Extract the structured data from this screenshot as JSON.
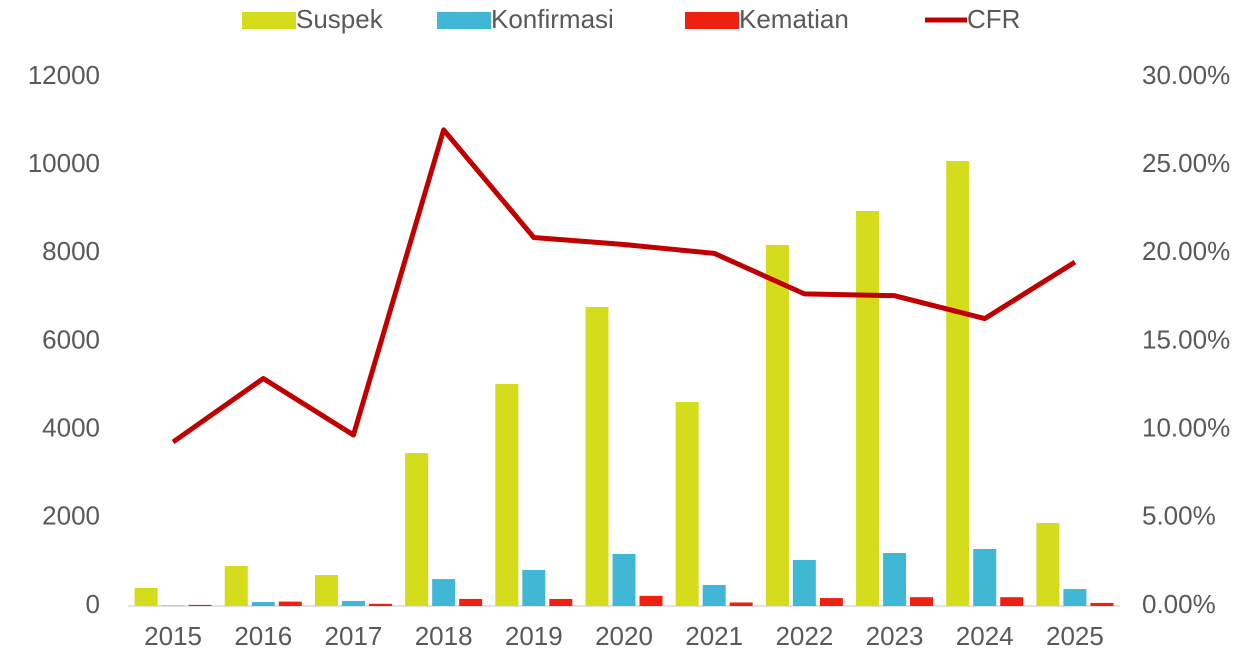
{
  "chart_data": {
    "type": "bar",
    "categories": [
      "2015",
      "2016",
      "2017",
      "2018",
      "2019",
      "2020",
      "2021",
      "2022",
      "2023",
      "2024",
      "2025"
    ],
    "series": [
      {
        "name": "Suspek",
        "color": "#d4dc1c",
        "values": [
          410,
          907,
          703,
          3470,
          5036,
          6783,
          4628,
          8190,
          8961,
          10095,
          1883
        ]
      },
      {
        "name": "Konfirmasi",
        "color": "#41b7d6",
        "values": [
          10,
          90,
          115,
          610,
          816,
          1180,
          476,
          1043,
          1202,
          1293,
          385
        ]
      },
      {
        "name": "Kematian",
        "color": "#ee2012",
        "values": [
          25,
          100,
          50,
          160,
          160,
          230,
          80,
          180,
          200,
          200,
          70
        ]
      },
      {
        "name": "CFR",
        "color": "#c00000",
        "type": "line",
        "axis": "y2",
        "values": [
          9.3,
          12.9,
          9.7,
          27.0,
          20.9,
          20.5,
          20.0,
          17.7,
          17.6,
          16.3,
          19.5
        ]
      }
    ],
    "ylim": [
      0,
      12000
    ],
    "yticks": [
      0,
      2000,
      4000,
      6000,
      8000,
      10000,
      12000
    ],
    "y2lim": [
      0,
      30
    ],
    "y2ticks": [
      {
        "value": 0,
        "label": "0.00%"
      },
      {
        "value": 5,
        "label": "5.00%"
      },
      {
        "value": 10,
        "label": "10.00%"
      },
      {
        "value": 15,
        "label": "15.00%"
      },
      {
        "value": 20,
        "label": "20.00%"
      },
      {
        "value": 25,
        "label": "25.00%"
      },
      {
        "value": 30,
        "label": "30.00%"
      }
    ],
    "legend": "top",
    "grid": false
  }
}
